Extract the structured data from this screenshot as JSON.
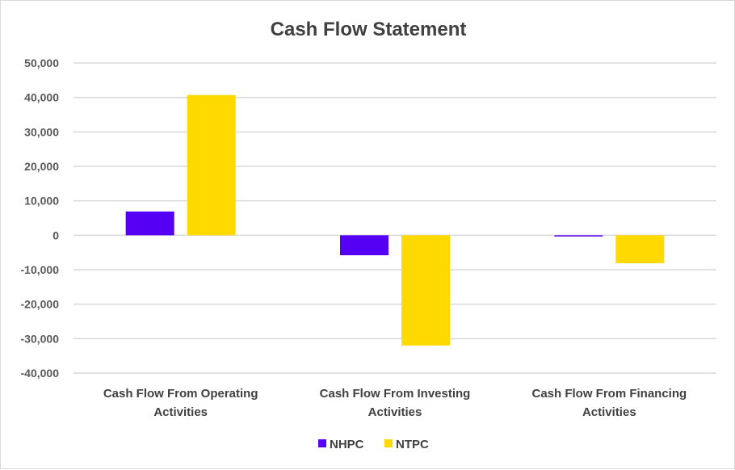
{
  "chart_data": {
    "type": "bar",
    "title": "Cash Flow Statement",
    "categories": [
      [
        "Cash Flow From Operating",
        "Activities"
      ],
      [
        "Cash Flow From Investing",
        "Activities"
      ],
      [
        "Cash Flow From Financing",
        "Activities"
      ]
    ],
    "series": [
      {
        "name": "NHPC",
        "color": "#5500F5",
        "values": [
          6900,
          -5800,
          -300
        ]
      },
      {
        "name": "NTPC",
        "color": "#FFD900",
        "values": [
          40700,
          -32000,
          -8100
        ]
      }
    ],
    "ylim": [
      -40000,
      50000
    ],
    "yticks": [
      "50,000",
      "40,000",
      "30,000",
      "20,000",
      "10,000",
      "0",
      "-10,000",
      "-20,000",
      "-30,000",
      "-40,000"
    ],
    "grid": true,
    "legend": "bottom"
  }
}
